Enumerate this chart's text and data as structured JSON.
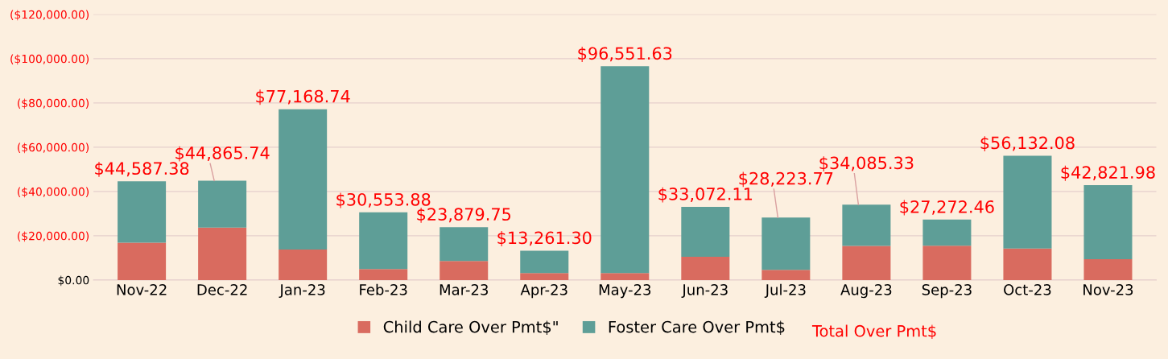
{
  "chart_data": {
    "type": "bar",
    "stacked": true,
    "categories": [
      "Nov-22",
      "Dec-22",
      "Jan-23",
      "Feb-23",
      "Mar-23",
      "Apr-23",
      "May-23",
      "Jun-23",
      "Jul-23",
      "Aug-23",
      "Sep-23",
      "Oct-23",
      "Nov-23"
    ],
    "series": [
      {
        "name": "Child Care Over Pmt$\"",
        "color": "#d96b5f",
        "values": [
          16900,
          23700,
          13800,
          5000,
          8600,
          3100,
          3100,
          10500,
          4600,
          15400,
          15500,
          14200,
          9400
        ]
      },
      {
        "name": "Foster Care Over Pmt$",
        "color": "#5e9e97",
        "values": [
          27687.38,
          21165.74,
          63368.74,
          25553.88,
          15279.75,
          10161.3,
          93451.63,
          22572.11,
          23623.77,
          18685.33,
          11772.46,
          41932.08,
          33421.98
        ]
      }
    ],
    "totals": [
      "$44,587.38",
      "$44,865.74",
      "$77,168.74",
      "$30,553.88",
      "$23,879.75",
      "$13,261.30",
      "$96,551.63",
      "$33,072.11",
      "$28,223.77",
      "$34,085.33",
      "$27,272.46",
      "$56,132.08",
      "$42,821.98"
    ],
    "annotations": [
      "Total Over Pmt$"
    ],
    "ylim": [
      0,
      120000
    ],
    "yticks": [
      {
        "value": 0,
        "label": "$0.00"
      },
      {
        "value": 20000,
        "label": "($20,000.00)"
      },
      {
        "value": 40000,
        "label": "($40,000.00)"
      },
      {
        "value": 60000,
        "label": "($60,000.00)"
      },
      {
        "value": 80000,
        "label": "($80,000.00)"
      },
      {
        "value": 100000,
        "label": "($100,000.00)"
      },
      {
        "value": 120000,
        "label": "($120,000.00)"
      }
    ],
    "grid": "y",
    "legend": "bottom"
  }
}
